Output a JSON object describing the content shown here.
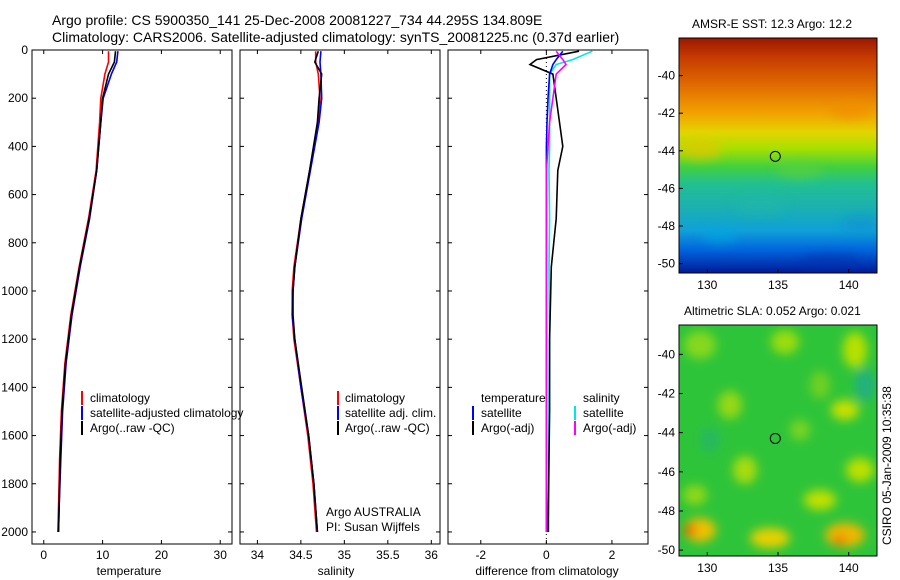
{
  "header": {
    "line1": "Argo profile: CS 5900350_141 25-Dec-2008 20081227_734 44.295S 134.809E",
    "line2": "Climatology: CARS2006. Satellite-adjusted climatology: synTS_20081225.nc (0.37d earlier)"
  },
  "stamp": "CSIRO 05-Jan-2009 10:35:38",
  "colors": {
    "climatology": "#ff0000",
    "satellite": "#0000ff",
    "argo": "#000000",
    "temperature_satellite_diff": "#00e5e5",
    "salinity_diff": "#ff00ff"
  },
  "chart_data": [
    {
      "type": "line",
      "xlabel": "temperature",
      "xlim": [
        -2,
        32
      ],
      "ylim": [
        2050,
        0
      ],
      "xticks": [
        "0",
        "10",
        "20",
        "30"
      ],
      "yticks": [
        "0",
        "200",
        "400",
        "600",
        "800",
        "1000",
        "1200",
        "1400",
        "1600",
        "1800",
        "2000"
      ],
      "depth": [
        5,
        50,
        100,
        200,
        300,
        500,
        700,
        900,
        1100,
        1300,
        1500,
        1700,
        1900,
        2000
      ],
      "series": [
        {
          "name": "climatology",
          "values": [
            11.0,
            11.0,
            10.4,
            9.7,
            9.5,
            8.9,
            7.6,
            6.0,
            4.6,
            3.6,
            3.0,
            2.7,
            2.5,
            2.4
          ]
        },
        {
          "name": "satellite-adjusted climatology",
          "values": [
            12.6,
            12.4,
            11.5,
            10.1,
            9.7,
            9.0,
            7.8,
            6.2,
            4.8,
            3.8,
            3.2,
            2.9,
            2.6,
            2.5
          ]
        },
        {
          "name": "Argo(..raw -QC)",
          "values": [
            12.2,
            12.0,
            11.0,
            10.0,
            9.7,
            9.0,
            7.7,
            6.1,
            4.7,
            3.7,
            3.1,
            2.8,
            2.6,
            2.5
          ]
        }
      ],
      "legend": [
        "climatology",
        "satellite-adjusted climatology",
        "Argo(..raw -QC)"
      ]
    },
    {
      "type": "line",
      "xlabel": "salinity",
      "xlim": [
        33.8,
        36.1
      ],
      "ylim": [
        2050,
        0
      ],
      "xticks": [
        "34",
        "34.5",
        "35",
        "35.5",
        "36"
      ],
      "depth": [
        5,
        50,
        100,
        200,
        300,
        500,
        700,
        900,
        1000,
        1100,
        1200,
        1400,
        1600,
        1800,
        2000
      ],
      "series": [
        {
          "name": "climatology",
          "values": [
            34.67,
            34.67,
            34.7,
            34.72,
            34.7,
            34.6,
            34.5,
            34.42,
            34.4,
            34.4,
            34.42,
            34.5,
            34.58,
            34.64,
            34.68
          ]
        },
        {
          "name": "satellite adj. clim.",
          "values": [
            34.73,
            34.72,
            34.73,
            34.74,
            34.71,
            34.61,
            34.51,
            34.43,
            34.41,
            34.4,
            34.43,
            34.5,
            34.59,
            34.65,
            34.69
          ]
        },
        {
          "name": "Argo(..raw -QC)",
          "values": [
            34.7,
            34.66,
            34.74,
            34.71,
            34.69,
            34.6,
            34.5,
            34.43,
            34.41,
            34.41,
            34.43,
            34.51,
            34.59,
            34.65,
            34.69
          ]
        }
      ],
      "legend": [
        "climatology",
        "satellite adj. clim.",
        "Argo(..raw -QC)"
      ],
      "annotation": [
        "Argo AUSTRALIA",
        "PI: Susan Wijffels"
      ]
    },
    {
      "type": "line",
      "xlabel": "difference from climatology",
      "xlim": [
        -3,
        3.1
      ],
      "ylim": [
        2050,
        0
      ],
      "xticks": [
        "-2",
        "0",
        "2"
      ],
      "depth": [
        5,
        40,
        60,
        100,
        200,
        300,
        400,
        500,
        700,
        900,
        1200,
        1500,
        2000
      ],
      "series": [
        {
          "name": "temperature satellite",
          "values": [
            1.4,
            0.8,
            0.3,
            0.1,
            0.1,
            0.1,
            0.1,
            0.08,
            0.1,
            0.08,
            0.1,
            0.08,
            0.07
          ]
        },
        {
          "name": "temperature Argo(-adj)",
          "values": [
            1.0,
            -0.3,
            -0.5,
            0.2,
            0.3,
            0.4,
            0.5,
            0.35,
            0.3,
            0.15,
            0.1,
            0.1,
            0.05
          ]
        },
        {
          "name": "salinity satellite",
          "values": [
            0.5,
            0.3,
            0.2,
            0.1,
            0.05,
            0.02,
            0.0,
            0.0,
            0.0,
            0.0,
            0.0,
            0.0,
            0.0
          ]
        },
        {
          "name": "salinity Argo(-adj)",
          "values": [
            0.3,
            0.5,
            0.6,
            0.3,
            0.2,
            0.1,
            0.05,
            0.0,
            0.0,
            0.0,
            0.0,
            0.0,
            0.0
          ]
        }
      ],
      "legend": {
        "temperature": "temperature",
        "salinity": "salinity",
        "t_satellite": "satellite",
        "t_argo": "Argo(-adj)",
        "s_satellite": "satellite",
        "s_argo": "Argo(-adj)"
      }
    },
    {
      "type": "heatmap",
      "title": "AMSR-E SST: 12.3 Argo: 12.2",
      "xlim": [
        128,
        142
      ],
      "ylim": [
        -50.5,
        -38
      ],
      "xticks": [
        "130",
        "135",
        "140"
      ],
      "yticks": [
        "-40",
        "-42",
        "-44",
        "-46",
        "-48",
        "-50"
      ],
      "marker": {
        "lon": 134.809,
        "lat": -44.295
      }
    },
    {
      "type": "heatmap",
      "title": "Altimetric SLA: 0.052 Argo: 0.021",
      "xlim": [
        128,
        142
      ],
      "ylim": [
        -50.3,
        -38.5
      ],
      "xticks": [
        "130",
        "135",
        "140"
      ],
      "yticks": [
        "-40",
        "-42",
        "-44",
        "-46",
        "-48",
        "-50"
      ],
      "marker": {
        "lon": 134.809,
        "lat": -44.295
      }
    }
  ]
}
